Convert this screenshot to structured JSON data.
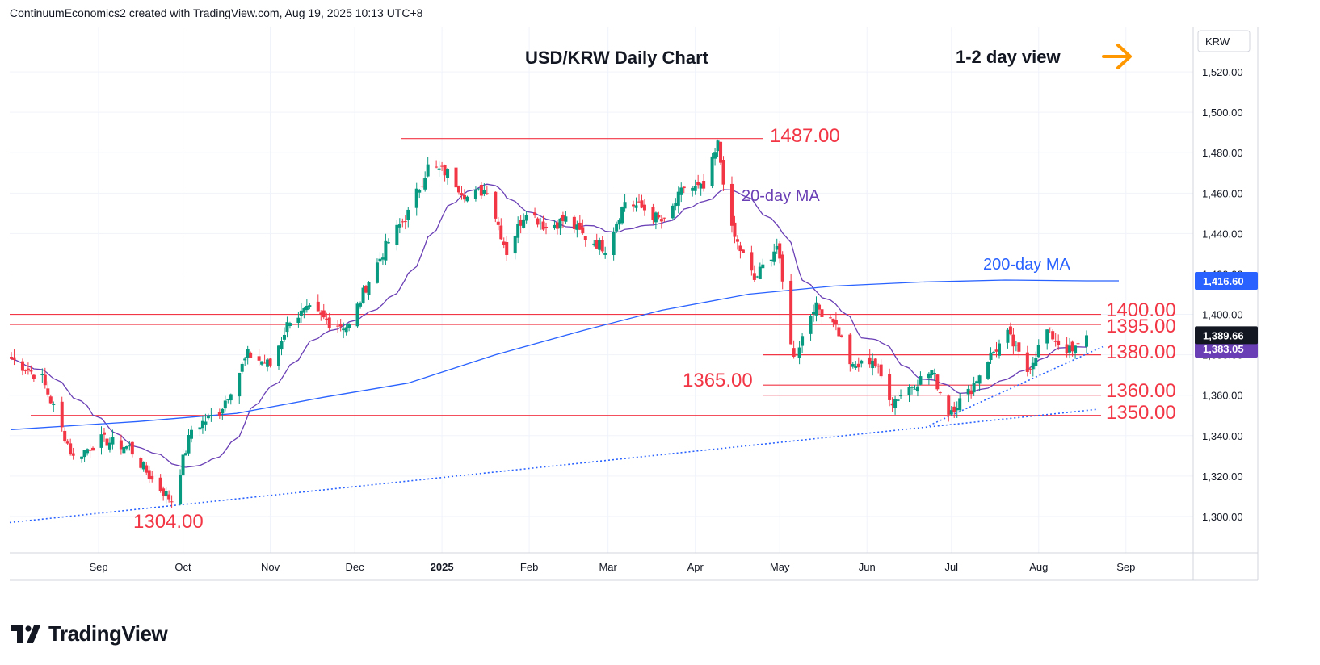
{
  "header": {
    "attribution": "ContinuumEconomics2 created with TradingView.com, Aug 19, 2025 10:13 UTC+8"
  },
  "footer": {
    "brand": "TradingView",
    "logo_icon": "tradingview-logo-icon"
  },
  "colors": {
    "up": "#089981",
    "down": "#f23645",
    "level": "#f23645",
    "ma20": "#6a3fb5",
    "ma200": "#2962ff",
    "trend": "#2962ff",
    "arrow": "#ff9800"
  },
  "chart_data": {
    "type": "candlestick",
    "title": "USD/KRW Daily Chart",
    "view_label": "1-2 day view",
    "currency_label": "KRW",
    "yticks": [
      "1,300.00",
      "1,320.00",
      "1,340.00",
      "1,360.00",
      "1,380.00",
      "1,400.00",
      "1,420.00",
      "1,440.00",
      "1,460.00",
      "1,480.00",
      "1,500.00",
      "1,520.00"
    ],
    "xticks": [
      "Sep",
      "Oct",
      "Nov",
      "Dec",
      "2025",
      "Feb",
      "Mar",
      "Apr",
      "May",
      "Jun",
      "Jul",
      "Aug",
      "Sep"
    ],
    "ylim": [
      1282,
      1542
    ],
    "grid": true,
    "last_price": "1,389.66",
    "ma200_value": "1,416.60",
    "ma20_value": "1,383.05",
    "levels": [
      {
        "label": "1487.00",
        "value": 1487
      },
      {
        "label": "1400.00",
        "value": 1400
      },
      {
        "label": "1395.00",
        "value": 1395
      },
      {
        "label": "1380.00",
        "value": 1380
      },
      {
        "label": "1365.00",
        "value": 1365
      },
      {
        "label": "1360.00",
        "value": 1360
      },
      {
        "label": "1350.00",
        "value": 1350
      },
      {
        "label": "1304.00",
        "value": 1304
      }
    ],
    "annotations": [
      "20-day MA",
      "200-day MA"
    ],
    "series_close_path": [
      [
        "2024-08-01",
        1378
      ],
      [
        "2024-08-12",
        1368
      ],
      [
        "2024-08-23",
        1329
      ],
      [
        "2024-09-02",
        1338
      ],
      [
        "2024-09-12",
        1334
      ],
      [
        "2024-09-20",
        1318
      ],
      [
        "2024-09-27",
        1308
      ],
      [
        "2024-10-04",
        1343
      ],
      [
        "2024-10-14",
        1352
      ],
      [
        "2024-10-24",
        1380
      ],
      [
        "2024-11-01",
        1375
      ],
      [
        "2024-11-08",
        1398
      ],
      [
        "2024-11-15",
        1402
      ],
      [
        "2024-11-22",
        1396
      ],
      [
        "2024-11-29",
        1394
      ],
      [
        "2024-12-06",
        1417
      ],
      [
        "2024-12-13",
        1436
      ],
      [
        "2024-12-20",
        1450
      ],
      [
        "2024-12-27",
        1473
      ],
      [
        "2025-01-03",
        1470
      ],
      [
        "2025-01-10",
        1458
      ],
      [
        "2025-01-17",
        1462
      ],
      [
        "2025-01-24",
        1431
      ],
      [
        "2025-01-31",
        1452
      ],
      [
        "2025-02-07",
        1443
      ],
      [
        "2025-02-14",
        1447
      ],
      [
        "2025-02-21",
        1438
      ],
      [
        "2025-02-28",
        1433
      ],
      [
        "2025-03-07",
        1456
      ],
      [
        "2025-03-14",
        1452
      ],
      [
        "2025-03-21",
        1445
      ],
      [
        "2025-03-28",
        1463
      ],
      [
        "2025-04-04",
        1462
      ],
      [
        "2025-04-09",
        1484
      ],
      [
        "2025-04-14",
        1441
      ],
      [
        "2025-04-22",
        1417
      ],
      [
        "2025-04-30",
        1434
      ],
      [
        "2025-05-06",
        1378
      ],
      [
        "2025-05-13",
        1404
      ],
      [
        "2025-05-20",
        1398
      ],
      [
        "2025-05-27",
        1373
      ],
      [
        "2025-06-03",
        1378
      ],
      [
        "2025-06-10",
        1357
      ],
      [
        "2025-06-17",
        1365
      ],
      [
        "2025-06-24",
        1372
      ],
      [
        "2025-06-30",
        1352
      ],
      [
        "2025-07-07",
        1361
      ],
      [
        "2025-07-14",
        1378
      ],
      [
        "2025-07-21",
        1390
      ],
      [
        "2025-07-28",
        1372
      ],
      [
        "2025-08-04",
        1392
      ],
      [
        "2025-08-08",
        1386
      ],
      [
        "2025-08-13",
        1381
      ],
      [
        "2025-08-18",
        1389.66
      ]
    ]
  }
}
